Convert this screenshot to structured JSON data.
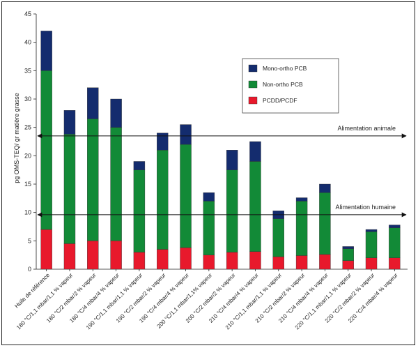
{
  "chart_data": {
    "type": "bar",
    "stacked": true,
    "ylabel": "pg OMS-TEQ/ gr matière grasse",
    "ylim": [
      0,
      45
    ],
    "yticks": [
      0,
      5,
      10,
      15,
      20,
      25,
      30,
      35,
      40,
      45
    ],
    "categories": [
      "Huile de référence",
      "180 °C/1,1 mbar/1,1 % vapeur",
      "180 °C/2 mbar/2 % vapeur",
      "180 °C/4 mbar/4 % vapeur",
      "190 °C/1,1 mbar/1,1 % vapeur",
      "190 °C/2 mbar/2 % vapeur",
      "190 °C/4 mbar/4 % vapeur",
      "200 °C/1,1 mbar/1,1% vapeur",
      "200 °C/2 mbar/2 % vapeur",
      "210 °C/4 mbar/4 % vapeur",
      "210 °C/1,1 mbar/1,1 % vapeur",
      "210 °C/2 mbar/2 % vapeur",
      "210 °C/4 mbar/4 % vapeur",
      "220 °C/1,1 mbar/1,1 % vapeur",
      "220 °C/2 mbar/2 % vapeur",
      "220 °C/4 mbar/4 % vapeur"
    ],
    "series": [
      {
        "name": "PCDD/PCDF",
        "color": "#e8192c",
        "values": [
          7,
          4.5,
          5,
          5,
          3,
          3.5,
          3.8,
          2.5,
          3,
          3.1,
          2.2,
          2.4,
          2.6,
          1.5,
          2,
          2
        ]
      },
      {
        "name": "Non-ortho PCB",
        "color": "#128a37",
        "values": [
          28,
          19.3,
          21.5,
          20,
          14.5,
          17.5,
          18.2,
          9.5,
          14.5,
          15.9,
          6.7,
          9.6,
          10.9,
          2.1,
          4.6,
          5.3
        ]
      },
      {
        "name": "Mono-ortho PCB",
        "color": "#142c6e",
        "values": [
          7,
          4.2,
          5.5,
          5,
          1.5,
          3,
          3.5,
          1.5,
          3.5,
          3.5,
          1.4,
          0.6,
          1.5,
          0.4,
          0.4,
          0.5
        ]
      }
    ],
    "legend_order": [
      "Mono-ortho PCB",
      "Non-ortho PCB",
      "PCDD/PCDF"
    ],
    "legend_position": "top-right",
    "reference_lines": [
      {
        "label": "Alimentation animale",
        "value": 23.5
      },
      {
        "label": "Alimentation humaine",
        "value": 9.6
      }
    ],
    "grid": false
  }
}
